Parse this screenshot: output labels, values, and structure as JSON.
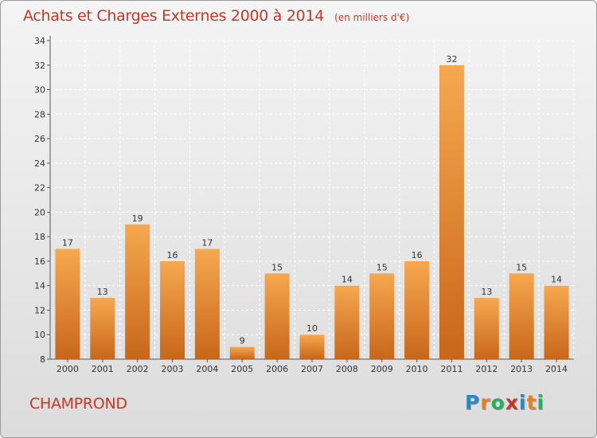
{
  "title": "Achats et Charges Externes 2000 à 2014",
  "subtitle": "(en milliers d'€)",
  "commune": "CHAMPROND",
  "logo": {
    "letters": [
      "P",
      "r",
      "o",
      "x",
      "i",
      "t",
      "i"
    ],
    "colors": [
      "#2e86c1",
      "#e67e22",
      "#27ae60",
      "#c0392b",
      "#2e86c1",
      "#e67e22",
      "#27ae60"
    ]
  },
  "colors": {
    "bar_light": "#f6a850",
    "bar_dark": "#c8661a",
    "title": "#c0392b"
  },
  "chart_data": {
    "type": "bar",
    "categories": [
      "2000",
      "2001",
      "2002",
      "2003",
      "2004",
      "2005",
      "2006",
      "2007",
      "2008",
      "2009",
      "2010",
      "2011",
      "2012",
      "2013",
      "2014"
    ],
    "values": [
      17,
      13,
      19,
      16,
      17,
      9,
      15,
      10,
      14,
      15,
      16,
      32,
      13,
      15,
      14
    ],
    "ylim": [
      8,
      34
    ],
    "yticks": [
      8,
      10,
      12,
      14,
      16,
      18,
      20,
      22,
      24,
      26,
      28,
      30,
      32,
      34
    ],
    "grid": true,
    "xlabel": "",
    "ylabel": ""
  }
}
